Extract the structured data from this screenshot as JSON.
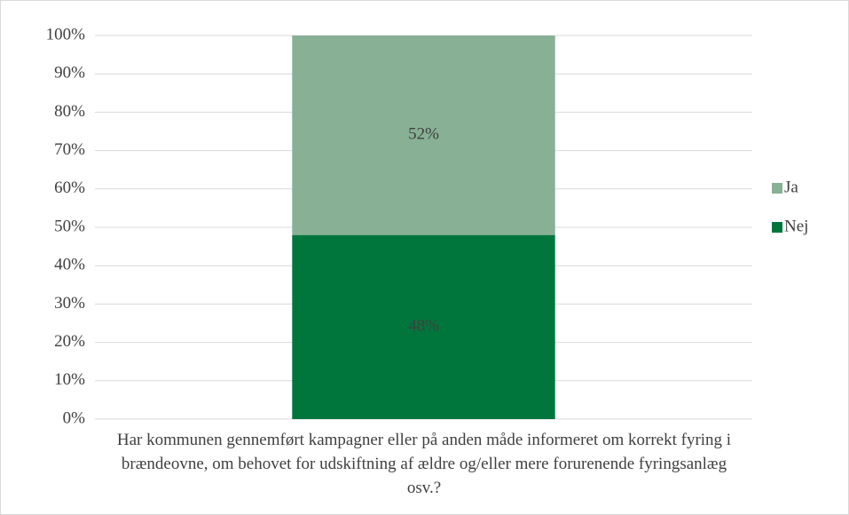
{
  "chart_data": {
    "type": "stacked_bar",
    "categories": [
      "Har kommunen gennemført kampagner eller på anden måde informeret om korrekt fyring i brændeovne, om behovet for udskiftning af ældre og/eller mere forurenende fyringsanlæg osv.?"
    ],
    "series": [
      {
        "name": "Nej",
        "color": "#00763d",
        "values": [
          48
        ],
        "value_labels": [
          "48%"
        ]
      },
      {
        "name": "Ja",
        "color": "#88b094",
        "values": [
          52
        ],
        "value_labels": [
          "52%"
        ]
      }
    ],
    "ylim": [
      0,
      100
    ],
    "yticks": [
      {
        "value": 0,
        "label": "0%"
      },
      {
        "value": 10,
        "label": "10%"
      },
      {
        "value": 20,
        "label": "20%"
      },
      {
        "value": 30,
        "label": "30%"
      },
      {
        "value": 40,
        "label": "40%"
      },
      {
        "value": 50,
        "label": "50%"
      },
      {
        "value": 60,
        "label": "60%"
      },
      {
        "value": 70,
        "label": "70%"
      },
      {
        "value": 80,
        "label": "80%"
      },
      {
        "value": 90,
        "label": "90%"
      },
      {
        "value": 100,
        "label": "100%"
      }
    ],
    "grid": true,
    "legend": "right"
  }
}
